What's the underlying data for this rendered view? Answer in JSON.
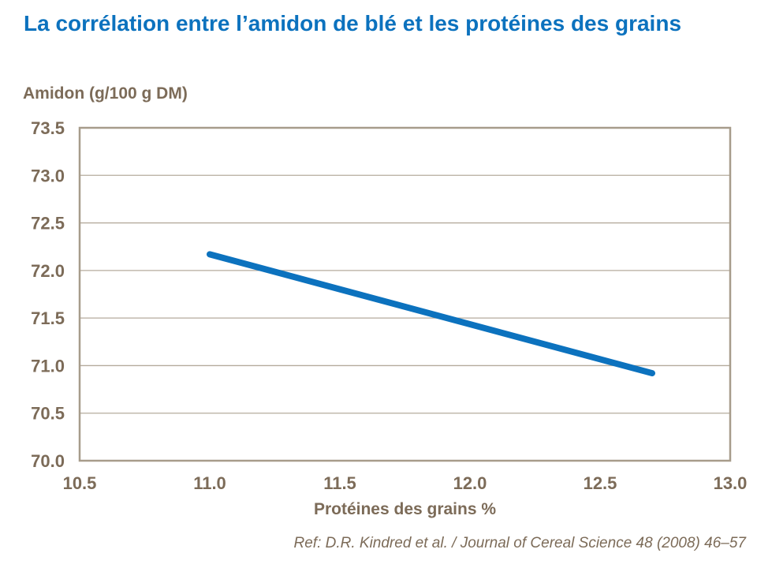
{
  "slide": {
    "title": "La corrélation entre l’amidon de blé et les protéines des grains",
    "reference": "Ref: D.R. Kindred et al. / Journal of Cereal Science 48 (2008) 46–57"
  },
  "chart_data": {
    "type": "line",
    "title": "",
    "xlabel": "Protéines des grains %",
    "ylabel": "Amidon (g/100 g DM)",
    "xlim": [
      10.5,
      13.0
    ],
    "ylim": [
      70.0,
      73.5
    ],
    "xticks": [
      "10.5",
      "11.0",
      "11.5",
      "12.0",
      "12.5",
      "13.0"
    ],
    "yticks": [
      "70.0",
      "70.5",
      "71.0",
      "71.5",
      "72.0",
      "72.5",
      "73.0",
      "73.5"
    ],
    "grid": "horizontal-only",
    "legend": "none",
    "series": [
      {
        "points": [
          [
            11.0,
            72.17
          ],
          [
            12.7,
            70.92
          ]
        ]
      }
    ]
  },
  "colors": {
    "title_blue": "#0c72be",
    "line_blue": "#0c72be",
    "axis_text": "#7c6b58",
    "gridline": "#b5ab9d",
    "plot_frame": "#a79c8b",
    "background": "#ffffff"
  }
}
